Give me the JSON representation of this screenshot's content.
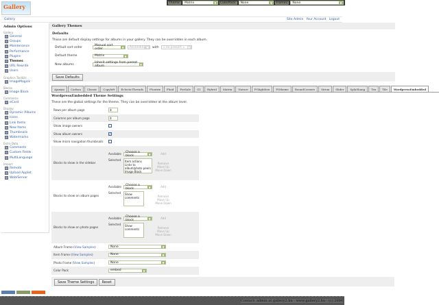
{
  "topbar": {
    "theme_label": "Theme:",
    "theme_value": "Matrix",
    "colorpack_label": "ColorPack:",
    "colorpack_value": "None",
    "frames_label": "Frames:",
    "frames_value": "None"
  },
  "logo": {
    "text": "Gallery"
  },
  "breadcrumb": {
    "gallery": "Gallery"
  },
  "userlinks": {
    "site_admin": "Site Admin",
    "your_account": "Your Account",
    "logout": "Logout"
  },
  "sidebar": {
    "title": "Admin Options",
    "groups": [
      {
        "label": "Gallery",
        "items": [
          "General",
          "Groups",
          "Maintenance",
          "Performance",
          "Plugins",
          "Themes",
          "URL Rewrite",
          "Users"
        ]
      },
      {
        "label": "Graphics Toolkits",
        "items": [
          "ImageMagick"
        ]
      },
      {
        "label": "Blocks",
        "items": [
          "Image Block"
        ]
      },
      {
        "label": "Commerce",
        "items": [
          "eCard"
        ]
      },
      {
        "label": "Display",
        "items": [
          "Dynamic Albums",
          "Icons",
          "Link Items",
          "New Items",
          "Thumbnails",
          "Watermarks"
        ]
      },
      {
        "label": "Extra Data",
        "items": [
          "Comments",
          "Custom Fields",
          "MultiLanguage"
        ]
      },
      {
        "label": "Import",
        "items": [
          "Remote",
          "Upload Applet",
          "Web/Server"
        ]
      }
    ],
    "current": "Themes"
  },
  "main": {
    "title": "Gallery Themes",
    "defaults_heading": "Defaults",
    "defaults_desc": "These are default display settings for albums in your gallery. They can be overridden in each album.",
    "sort_label": "Default sort order",
    "sort_value": "Manual sort order",
    "sort_dir": "Ascending",
    "with_label": "with",
    "with_value": "« no presort »",
    "theme_label": "Default theme",
    "theme_value": "Matrix",
    "new_albums_label": "New albums",
    "new_albums_value": "Inherit settings from parent album",
    "save_defaults": "Save Defaults"
  },
  "tabs": [
    "Ajaxian",
    "Carbon",
    "Classic",
    "Copyleft",
    "EclecticThreads",
    "Floatrix",
    "Fluid",
    "ForSale",
    "G1",
    "Hybrid",
    "Matrix",
    "Nature",
    "PGlightbox",
    "PGtheme",
    "RoundCorners",
    "Siriux",
    "Slider",
    "SplaShang",
    "Tex",
    "Tile",
    "WordpressEmbedded"
  ],
  "active_tab": "WordpressEmbedded",
  "theme_settings": {
    "title": "WordpressEmbedded Theme Settings",
    "desc": "These are the global settings for the theme. They can be overridden at the album level.",
    "rows_label": "Rows per album page",
    "rows_value": "3",
    "cols_label": "Columns per album page",
    "cols_value": "3",
    "show_image_owners": "Show image owners",
    "show_image_owners_checked": false,
    "show_album_owners": "Show album owners",
    "show_album_owners_checked": true,
    "show_micro": "Show micro navigation thumbnails",
    "show_micro_checked": false,
    "available": "Available",
    "selected": "Selected",
    "choose_block": "Choose a block",
    "add": "Add",
    "remove": "Remove",
    "move_up": "Move Up",
    "move_down": "Move Down",
    "sidebar_blocks_label": "Blocks to show in the sidebar",
    "sidebar_blocks": [
      "Item actions",
      "Links to album/photo peers",
      "Image Block"
    ],
    "album_blocks_label": "Blocks to show on album pages",
    "album_blocks": [
      "Show comments"
    ],
    "photo_blocks_label": "Blocks to show on photo pages",
    "photo_blocks": [
      "Show comments"
    ],
    "album_frame_label": "Album Frame",
    "item_frame_label": "Item Frame",
    "photo_frame_label": "Photo Frame",
    "view_samples": "View Samples",
    "album_frame_value": "None",
    "item_frame_value": "None",
    "photo_frame_value": "None",
    "color_pack_label": "Color Pack",
    "color_pack_value": "embed",
    "save": "Save Theme Settings",
    "reset": "Reset"
  },
  "badges": [
    "W3C XHTML 1.0",
    "CSS Valid",
    "Gallery 2"
  ],
  "footer": "Contact: admin at gallery2.hu - www.gallery2.hu - (c) 2006"
}
